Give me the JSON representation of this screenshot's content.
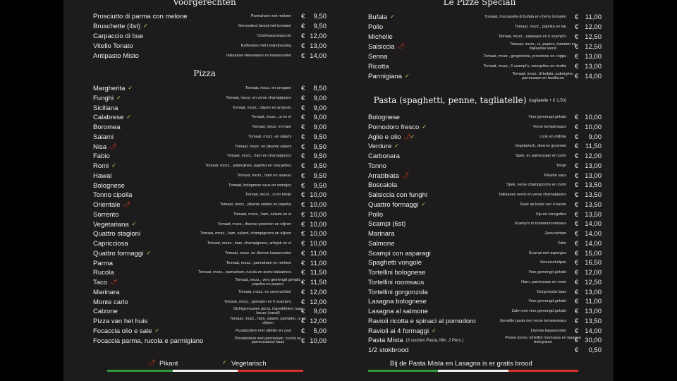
{
  "currency": "€",
  "left": {
    "starters": {
      "title": "Voorgerechten",
      "items": [
        {
          "name": "Prosciutto di parma con melone",
          "desc": "Parmaham met meloen",
          "price": "9,50"
        },
        {
          "name": "Bruschette (4st)",
          "desc": "Geroosterd brood met tomaten",
          "price": "9,50",
          "veg": true
        },
        {
          "name": "Carpaccio di bue",
          "desc": "Ossehaascarpaccio",
          "price": "12,00"
        },
        {
          "name": "Vitello Tonato",
          "desc": "Kalfsvlees met tonijndressing",
          "price": "13,00"
        },
        {
          "name": "Antipasto Misto",
          "desc": "Italiaanse vleeswaren en kaassoorten",
          "price": "14,00"
        }
      ]
    },
    "pizza": {
      "title": "Pizza",
      "items": [
        {
          "name": "Margherita",
          "desc": "Tomaat, mozz. en oregano",
          "price": "8,50",
          "veg": true
        },
        {
          "name": "Funghi",
          "desc": "Tomaat, mozz. en verse champignons",
          "price": "9,00",
          "veg": true
        },
        {
          "name": "Siciliana",
          "desc": "Tomaat, mozz., olijven en ansjovis",
          "price": "9,00"
        },
        {
          "name": "Calabrese",
          "desc": "Tomaat, mozz., ui en ei",
          "price": "9,00",
          "veg": true
        },
        {
          "name": "Boromea",
          "desc": "Tomaat, mozz. en ham",
          "price": "9,00"
        },
        {
          "name": "Salami",
          "desc": "Tomaat, mozz. en salami",
          "price": "9,50"
        },
        {
          "name": "Nisa",
          "desc": "Tomaat, mozz. en pikante salami",
          "price": "9,50",
          "hot": true
        },
        {
          "name": "Fabio",
          "desc": "Tomaat, mozz., ham en champignons",
          "price": "9,50"
        },
        {
          "name": "Romi",
          "desc": "Tomaat, mozz., aubergines, paprika en courgettes",
          "price": "9,50",
          "veg": true
        },
        {
          "name": "Hawai",
          "desc": "Tomaat, mozz., ham en ananas",
          "price": "9,50"
        },
        {
          "name": "Bolognese",
          "desc": "Tomaat, bolognese saus en worstjes",
          "price": "9,50"
        },
        {
          "name": "Tonno cipolla",
          "desc": "Tomaat, mozz., ui en tonijn",
          "price": "10,00"
        },
        {
          "name": "Orientale",
          "desc": "Tomaat, mozz., pikante salami en paprika",
          "price": "10,00",
          "hot": true
        },
        {
          "name": "Sorrento",
          "desc": "Tomaat, mozz., ham, salami en ei",
          "price": "10,00"
        },
        {
          "name": "Vegetariana",
          "desc": "Tomaat, mozz., diverse groenten en olijven",
          "price": "10,00",
          "veg": true
        },
        {
          "name": "Quattro stagioni",
          "desc": "Tomaat, mozz., ham, salami, champignons en olijven",
          "price": "10,00"
        },
        {
          "name": "Capricciosa",
          "desc": "Tomaat, mozz., ham, champignons, artisjok en ei",
          "price": "10,00"
        },
        {
          "name": "Quattro formaggi",
          "desc": "Tomaat, mozz. en diverse kaassoorten",
          "price": "11,00",
          "veg": true
        },
        {
          "name": "Parma",
          "desc": "Tomaat, mozz., parmaham en meloen",
          "price": "11,00"
        },
        {
          "name": "Rucola",
          "desc": "Tomaat, mozz., parmaham, rucola en aceto balsamico",
          "price": "11,50"
        },
        {
          "name": "Taco",
          "desc": "Tomaat, mozz., vers gemengd gehakt, paprika en pepers",
          "price": "11,50",
          "hot": true
        },
        {
          "name": "Marinara",
          "desc": "Tomaat, mozz. en zeevruchten",
          "price": "12,00"
        },
        {
          "name": "Monte carlo",
          "desc": "Tomaat, mozz., garnalen en 6 scampi's",
          "price": "12,00"
        },
        {
          "name": "Calzone",
          "desc": "Dichtgevouwen pizza, ingrediënten naar keuze (vanaf)",
          "price": "9,00"
        },
        {
          "name": "Pizza van het huis",
          "desc": "Tomaat, mozz., ham, salami, garnalen, ui en olijven",
          "price": "12,00"
        },
        {
          "name": "Focaccia olio e sale",
          "desc": "Pizzabodem met olijfolie en zout",
          "price": "5,00",
          "veg": true
        },
        {
          "name": "Focaccia parma, rucola e parmigiano",
          "desc": "Pizzabodem met parmaham, rucola en parmezaanse kaas",
          "price": "10,00"
        }
      ]
    },
    "legend": {
      "hot": "Pikant",
      "veg": "Vegetarisch"
    }
  },
  "right": {
    "specials": {
      "title": "Le Pizze Speciali",
      "items": [
        {
          "name": "Bufala",
          "desc": "Tomaat, mozzarella di bufala en cherry tomaten",
          "price": "11,00",
          "veg": true
        },
        {
          "name": "Pollo",
          "desc": "Tomaat, mozz., paprika en kip",
          "price": "12,00"
        },
        {
          "name": "Michelle",
          "desc": "Tomaat, mozz., asperges en 6 scampi's",
          "price": "12,50"
        },
        {
          "name": "Salsiccia",
          "desc": "Tomaat, mozz., ui, pepers, tomaten en Italiaanse worst",
          "price": "12,50",
          "hot": true
        },
        {
          "name": "Senna",
          "desc": "Tomaat, mozz., gorgonzola, provolone en coppa",
          "price": "13,00"
        },
        {
          "name": "Ricotta",
          "desc": "Tomaat, mozz., 6 scampi's, courgettes en ricotta",
          "price": "13,00"
        },
        {
          "name": "Parmigiana",
          "desc": "Tomaat, mozz. di bufala, aubergine, parmezaan en basilicum",
          "price": "14,00",
          "veg": true
        }
      ]
    },
    "pasta": {
      "title": "Pasta (spaghetti, penne, tagliatelle)",
      "subtitle": "(tagliatelle + € 1,50)",
      "items": [
        {
          "name": "Bolognese",
          "desc": "Vers gemengd gehakt",
          "price": "10,00"
        },
        {
          "name": "Pomodoro fresco",
          "desc": "Verse tomatensaus",
          "price": "10,00",
          "veg": true
        },
        {
          "name": "Aglio e olio",
          "desc": "Look en olijfolie",
          "price": "9,00",
          "hot": true,
          "veg": true
        },
        {
          "name": "Verdure",
          "desc": "Vegetarisch, diverse groenten",
          "price": "11,50",
          "veg": true
        },
        {
          "name": "Carbonara",
          "desc": "Spek, ei, parmezaan en room",
          "price": "12,00"
        },
        {
          "name": "Tonno",
          "desc": "Tonijn",
          "price": "13,00"
        },
        {
          "name": "Arrabbiata",
          "desc": "Pikante saus",
          "price": "13,00",
          "hot": true
        },
        {
          "name": "Boscaiola",
          "desc": "Spek, verse champignons en room",
          "price": "13,50"
        },
        {
          "name": "Salsiccia con funghi",
          "desc": "Italiaanse worst en verse champignons",
          "price": "13,50"
        },
        {
          "name": "Quattro formaggi",
          "desc": "Saus op basis van 4 kazen",
          "price": "13,50",
          "veg": true
        },
        {
          "name": "Pollo",
          "desc": "Kip en courgettes",
          "price": "13,50"
        },
        {
          "name": "Scampi (6st)",
          "desc": "Scampi's in tomatenroomsaus",
          "price": "14,00"
        },
        {
          "name": "Marinara",
          "desc": "Zeevruchten",
          "price": "14,00"
        },
        {
          "name": "Salmone",
          "desc": "Zalm",
          "price": "14,00"
        },
        {
          "name": "Scampi con asparagi",
          "desc": "Scampi met asperges",
          "price": "15,00"
        },
        {
          "name": "Spaghetti vongole",
          "desc": "Venusschelpen",
          "price": "16,50"
        },
        {
          "name": "Tortellini bolognese",
          "desc": "Vers gemengd gehakt",
          "price": "12,00"
        },
        {
          "name": "Tortellini roomsaus",
          "desc": "Ham, parmezaan en room",
          "price": "12,50"
        },
        {
          "name": "Tortellini gorgonzola",
          "desc": "Gorgonzola kaas",
          "price": "13,00"
        },
        {
          "name": "Lasagna bolognese",
          "desc": "Vers gemengd gehakt",
          "price": "11,00"
        },
        {
          "name": "Lasagna al salmone",
          "desc": "Zalm met vers gemengd gehakt",
          "price": "13,00"
        },
        {
          "name": "Ravioli ricotta e spinaci al pomodoro",
          "desc": "Gevulde pasta met verse tomatensaus",
          "price": "13,50"
        },
        {
          "name": "Ravioli ai 4 formaggi",
          "desc": "Diverse kaassoorten",
          "price": "14,00",
          "veg": true
        },
        {
          "name": "Pasta Mista",
          "note": "(3 soorten Pasta, Min. 2 Pers.)",
          "desc": "Penne tonno, tortellini roomsaus en lasagna bolognese",
          "price": "30,00"
        },
        {
          "name": "1/2 stokbrood",
          "price": "0,50"
        }
      ]
    },
    "footer": "Bij de Pasta Mista en Lasagna is er gratis brood"
  }
}
